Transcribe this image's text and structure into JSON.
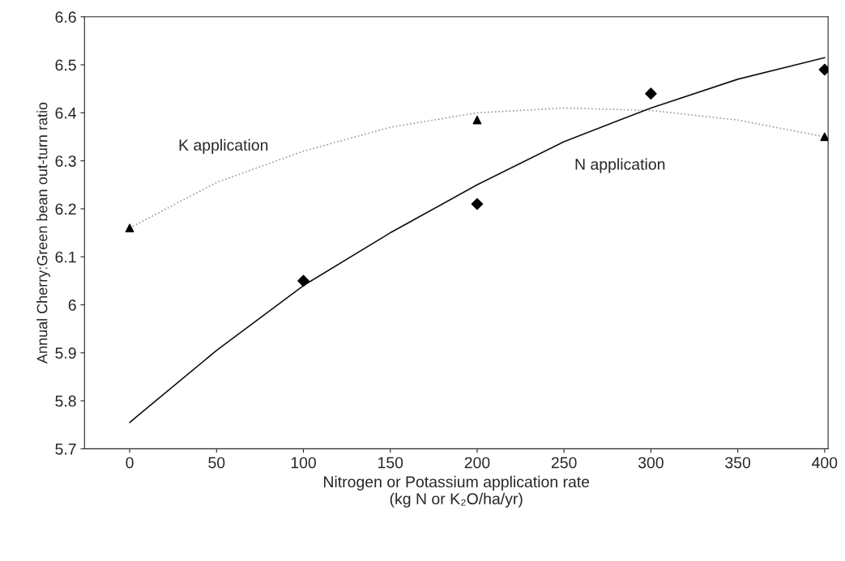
{
  "chart_data": {
    "type": "scatter",
    "xlabel": "Nitrogen or Potassium application rate\n(kg N or K₂O/ha/yr)",
    "ylabel": "Annual Cherry:Green bean out-turn ratio",
    "series": [
      {
        "type": "line",
        "name": "K application",
        "color": "#9a9a9a",
        "line_style": "dotted",
        "marker": "none",
        "x": [
          0,
          50,
          100,
          150,
          200,
          250,
          300,
          350,
          400
        ],
        "values": [
          6.16,
          6.255,
          6.32,
          6.37,
          6.4,
          6.41,
          6.405,
          6.385,
          6.35
        ]
      },
      {
        "type": "line",
        "name": "N application",
        "color": "#111111",
        "line_style": "solid",
        "marker": "none",
        "x": [
          0,
          50,
          100,
          150,
          200,
          250,
          300,
          350,
          400
        ],
        "values": [
          5.755,
          5.905,
          6.04,
          6.15,
          6.25,
          6.34,
          6.41,
          6.47,
          6.515
        ]
      },
      {
        "color": "#000000",
        "marker": "triangle",
        "x": [
          0,
          200,
          400
        ],
        "values": [
          6.16,
          6.385,
          6.35
        ]
      },
      {
        "color": "#000000",
        "marker": "diamond",
        "x": [
          100,
          200,
          300,
          400
        ],
        "values": [
          6.05,
          6.21,
          6.44,
          6.49
        ]
      }
    ],
    "xlim": [
      -26,
      402
    ],
    "ylim": [
      5.7,
      6.6
    ],
    "xticks": [
      0,
      50,
      100,
      150,
      200,
      250,
      300,
      350,
      400
    ],
    "yticks": [
      5.7,
      5.8,
      5.9,
      {
        "value": 6.0,
        "label": "6"
      },
      6.1,
      6.2,
      6.3,
      6.4,
      6.5,
      6.6
    ],
    "grid": false
  }
}
